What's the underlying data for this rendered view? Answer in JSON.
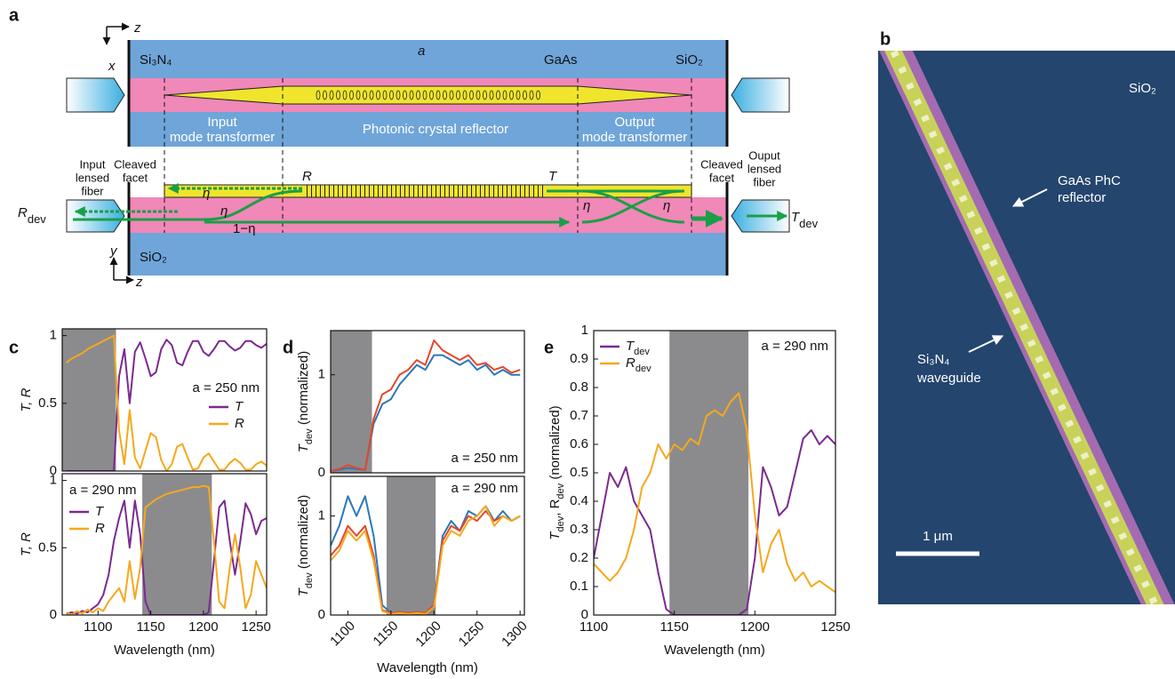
{
  "schematic": {
    "panel": "a",
    "labels": [
      "z",
      "x",
      "Si₃N₄",
      "a",
      "GaAs",
      "SiO₂",
      "Input",
      "mode transformer",
      "Photonic crystal reflector",
      "Output",
      "mode transformer",
      "Input",
      "lensed",
      "fiber",
      "Cleaved",
      "facet",
      "Cleaved",
      "facet",
      "Ouput",
      "lensed",
      "fiber",
      "R",
      "T",
      "η",
      "η",
      "η",
      "η",
      "1−η",
      {
        "main": "R",
        "sub": "dev"
      },
      {
        "main": "T",
        "sub": "dev"
      },
      "y",
      "z",
      "SiO₂"
    ]
  },
  "sem_image": {
    "panel": "b",
    "labels": [
      "SiO₂",
      "GaAs PhC",
      "reflector",
      "Si₃N₄",
      "waveguide",
      "1 μm"
    ]
  },
  "chart_data": [
    {
      "type": "line",
      "panel": "c",
      "annotation": "a = 250 nm",
      "y_label": [
        {
          "text": "T, R"
        }
      ],
      "xlim": [
        1066,
        1260
      ],
      "ylim": [
        0,
        1.05
      ],
      "yticks": [
        0,
        0.5,
        1
      ],
      "shaded": [
        1066,
        1117
      ],
      "x": [
        1070,
        1075,
        1080,
        1085,
        1090,
        1095,
        1100,
        1105,
        1110,
        1115,
        1120,
        1125,
        1130,
        1135,
        1140,
        1145,
        1150,
        1155,
        1160,
        1165,
        1170,
        1175,
        1180,
        1185,
        1190,
        1195,
        1200,
        1205,
        1210,
        1215,
        1220,
        1225,
        1230,
        1235,
        1240,
        1245,
        1250,
        1255,
        1260
      ],
      "series": [
        {
          "name": "T",
          "color": "#7b2a8f",
          "values": [
            0,
            0,
            0,
            0,
            0,
            0,
            0,
            0,
            0,
            0,
            0.7,
            0.9,
            0.5,
            0.88,
            0.95,
            0.83,
            0.7,
            0.73,
            0.9,
            0.97,
            0.93,
            0.8,
            0.78,
            0.88,
            0.96,
            0.96,
            0.88,
            0.85,
            0.9,
            0.96,
            0.96,
            0.92,
            0.89,
            0.91,
            0.96,
            0.96,
            0.93,
            0.91,
            0.94
          ]
        },
        {
          "name": "R",
          "color": "#f5a81c",
          "values": [
            0.8,
            0.83,
            0.85,
            0.87,
            0.9,
            0.92,
            0.94,
            0.96,
            0.98,
            1.0,
            0.3,
            0.05,
            0.45,
            0.1,
            0.02,
            0.15,
            0.28,
            0.25,
            0.08,
            0,
            0.05,
            0.18,
            0.2,
            0.1,
            0.01,
            0.02,
            0.1,
            0.13,
            0.07,
            0.01,
            0.01,
            0.06,
            0.09,
            0.06,
            0.01,
            0.01,
            0.05,
            0.07,
            0.04
          ]
        }
      ]
    },
    {
      "type": "line",
      "annotation": "a = 290 nm",
      "y_label": [
        {
          "text": "T, R"
        }
      ],
      "x_label": "Wavelength (nm)",
      "xlim": [
        1066,
        1260
      ],
      "ylim": [
        0,
        1.05
      ],
      "yticks": [
        0,
        0.5,
        1
      ],
      "xticks": [
        1100,
        1150,
        1200,
        1250
      ],
      "shaded": [
        1142,
        1208
      ],
      "x": [
        1070,
        1075,
        1080,
        1085,
        1090,
        1095,
        1100,
        1105,
        1110,
        1115,
        1120,
        1125,
        1130,
        1135,
        1140,
        1145,
        1150,
        1155,
        1160,
        1165,
        1170,
        1175,
        1180,
        1185,
        1190,
        1195,
        1200,
        1205,
        1210,
        1215,
        1220,
        1225,
        1230,
        1235,
        1240,
        1245,
        1250,
        1255,
        1260
      ],
      "series": [
        {
          "name": "T",
          "color": "#7b2a8f",
          "values": [
            0.01,
            0.02,
            0.01,
            0.03,
            0.02,
            0.05,
            0.08,
            0.15,
            0.3,
            0.55,
            0.72,
            0.85,
            0.5,
            0.85,
            0.6,
            0.1,
            0,
            0,
            0,
            0,
            0,
            0,
            0,
            0,
            0,
            0,
            0,
            0.02,
            0.4,
            0.8,
            0.85,
            0.55,
            0.3,
            0.55,
            0.83,
            0.75,
            0.6,
            0.7,
            0.72
          ]
        },
        {
          "name": "R",
          "color": "#f5a81c",
          "values": [
            0.02,
            0,
            0.03,
            0.01,
            0.04,
            0.02,
            0.05,
            0.03,
            0.1,
            0.15,
            0.2,
            0.1,
            0.4,
            0.12,
            0.35,
            0.8,
            0.83,
            0.86,
            0.88,
            0.9,
            0.91,
            0.92,
            0.93,
            0.94,
            0.95,
            0.95,
            0.96,
            0.95,
            0.55,
            0.1,
            0.05,
            0.35,
            0.6,
            0.35,
            0.05,
            0.15,
            0.4,
            0.3,
            0.2
          ]
        }
      ]
    },
    {
      "type": "line",
      "panel": "d",
      "annotation": "a = 250 nm",
      "y_label": [
        {
          "text": "T"
        },
        {
          "sub": "dev"
        },
        {
          "text": " (normalized)"
        }
      ],
      "xlim": [
        1080,
        1305
      ],
      "ylim": [
        0,
        1.45
      ],
      "yticks": [
        0,
        1
      ],
      "shaded": [
        1080,
        1128
      ],
      "x": [
        1080,
        1090,
        1100,
        1110,
        1120,
        1130,
        1140,
        1150,
        1160,
        1170,
        1180,
        1190,
        1200,
        1210,
        1220,
        1230,
        1240,
        1250,
        1260,
        1270,
        1280,
        1290,
        1300
      ],
      "series": [
        {
          "color": "#2a78b8",
          "values": [
            0.02,
            0.03,
            0.05,
            0.04,
            0.03,
            0.5,
            0.7,
            0.75,
            0.9,
            1.0,
            1.1,
            1.05,
            1.2,
            1.2,
            1.15,
            1.1,
            1.15,
            1.05,
            1.1,
            1.0,
            1.05,
            1.0,
            1.0
          ]
        },
        {
          "color": "#e8452a",
          "values": [
            0.02,
            0.04,
            0.08,
            0.05,
            0.03,
            0.55,
            0.8,
            0.85,
            1.0,
            1.05,
            1.15,
            1.1,
            1.35,
            1.25,
            1.2,
            1.15,
            1.2,
            1.1,
            1.12,
            1.05,
            1.08,
            1.02,
            1.05
          ]
        }
      ]
    },
    {
      "type": "line",
      "annotation": "a = 290 nm",
      "y_label": [
        {
          "text": "T"
        },
        {
          "sub": "dev"
        },
        {
          "text": " (normalized)"
        }
      ],
      "x_label": "Wavelength (nm)",
      "xlim": [
        1080,
        1305
      ],
      "ylim": [
        0,
        1.4
      ],
      "yticks": [
        0,
        1
      ],
      "xticks": [
        1100,
        1150,
        1200,
        1250,
        1300
      ],
      "xtick_rotation": -45,
      "shaded": [
        1145,
        1202
      ],
      "x": [
        1080,
        1090,
        1100,
        1110,
        1120,
        1130,
        1140,
        1150,
        1160,
        1170,
        1180,
        1190,
        1200,
        1210,
        1220,
        1230,
        1240,
        1250,
        1260,
        1270,
        1280,
        1290,
        1300
      ],
      "series": [
        {
          "color": "#2a78b8",
          "values": [
            0.7,
            0.9,
            1.2,
            1.0,
            1.2,
            0.8,
            0.1,
            0.02,
            0.03,
            0.02,
            0.03,
            0.02,
            0.1,
            0.8,
            0.95,
            0.85,
            1.05,
            1.0,
            1.1,
            0.95,
            1.05,
            0.95,
            1.0
          ]
        },
        {
          "color": "#e8452a",
          "values": [
            0.6,
            0.7,
            0.9,
            0.8,
            0.9,
            0.6,
            0.05,
            0.02,
            0.03,
            0.02,
            0.03,
            0.02,
            0.1,
            0.75,
            0.9,
            0.85,
            1.0,
            0.95,
            1.05,
            0.95,
            1.0,
            0.95,
            1.0
          ]
        },
        {
          "color": "#f5a81c",
          "values": [
            0.55,
            0.65,
            0.85,
            0.75,
            0.85,
            0.55,
            0.04,
            0.01,
            0.02,
            0.01,
            0.02,
            0.01,
            0.08,
            0.7,
            0.85,
            0.8,
            0.95,
            1.0,
            1.1,
            0.9,
            1.0,
            0.95,
            1.0
          ]
        }
      ]
    },
    {
      "type": "line",
      "panel": "e",
      "annotation": "a = 290 nm",
      "y_label": [
        {
          "text": "T"
        },
        {
          "sub": "dev"
        },
        {
          "text": ", R"
        },
        {
          "sub": "dev"
        },
        {
          "text": " (normalized)"
        }
      ],
      "x_label": "Wavelength (nm)",
      "xlim": [
        1100,
        1250
      ],
      "ylim": [
        0,
        1
      ],
      "yticks": [
        0,
        0.1,
        0.2,
        0.3,
        0.4,
        0.5,
        0.6,
        0.7,
        0.8,
        0.9,
        1
      ],
      "xticks": [
        1100,
        1150,
        1200,
        1250
      ],
      "shaded": [
        1147,
        1196
      ],
      "x": [
        1100,
        1105,
        1110,
        1115,
        1120,
        1125,
        1130,
        1135,
        1140,
        1145,
        1150,
        1155,
        1160,
        1165,
        1170,
        1175,
        1180,
        1185,
        1190,
        1195,
        1200,
        1205,
        1210,
        1215,
        1220,
        1225,
        1230,
        1235,
        1240,
        1245,
        1250
      ],
      "series": [
        {
          "name": "T",
          "name_sub": "dev",
          "color": "#7b2a8f",
          "values": [
            0.2,
            0.35,
            0.5,
            0.45,
            0.52,
            0.4,
            0.35,
            0.3,
            0.15,
            0.02,
            0,
            0,
            0,
            0,
            0,
            0,
            0,
            0,
            0,
            0.02,
            0.2,
            0.52,
            0.45,
            0.35,
            0.38,
            0.5,
            0.62,
            0.65,
            0.6,
            0.63,
            0.6
          ]
        },
        {
          "name": "R",
          "name_sub": "dev",
          "color": "#f5a81c",
          "values": [
            0.18,
            0.15,
            0.12,
            0.15,
            0.2,
            0.3,
            0.45,
            0.5,
            0.6,
            0.55,
            0.6,
            0.58,
            0.62,
            0.6,
            0.7,
            0.72,
            0.7,
            0.75,
            0.78,
            0.65,
            0.35,
            0.15,
            0.25,
            0.3,
            0.18,
            0.12,
            0.15,
            0.1,
            0.12,
            0.1,
            0.08
          ]
        }
      ]
    }
  ]
}
